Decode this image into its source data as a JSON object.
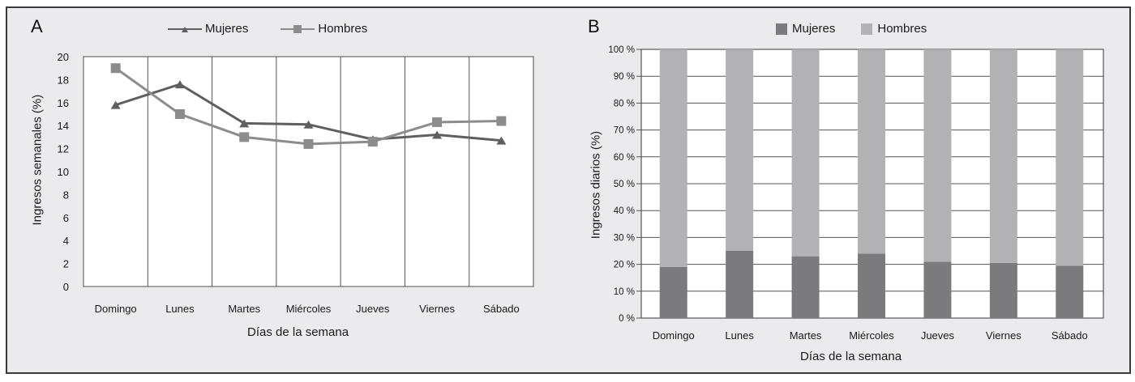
{
  "chart_data": [
    {
      "panel": "A",
      "type": "line",
      "title": "",
      "xlabel": "Días de la semana",
      "ylabel": "Ingresos semanales (%)",
      "ylim": [
        0,
        20
      ],
      "yticks": [
        0,
        2,
        4,
        6,
        8,
        10,
        12,
        14,
        16,
        18,
        20
      ],
      "categories": [
        "Domingo",
        "Lunes",
        "Martes",
        "Miércoles",
        "Jueves",
        "Viernes",
        "Sábado"
      ],
      "series": [
        {
          "name": "Mujeres",
          "marker": "triangle",
          "color": "#5f5f5f",
          "values": [
            15.8,
            17.6,
            14.2,
            14.1,
            12.8,
            13.2,
            12.7
          ]
        },
        {
          "name": "Hombres",
          "marker": "square",
          "color": "#8c8c8c",
          "values": [
            19.0,
            15.0,
            13.0,
            12.4,
            12.6,
            14.3,
            14.4
          ]
        }
      ],
      "grid": "vertical category separators",
      "legend_position": "top"
    },
    {
      "panel": "B",
      "type": "bar",
      "stacked": true,
      "percent": true,
      "title": "",
      "xlabel": "Días de la semana",
      "ylabel": "Ingresos diarios (%)",
      "ylim": [
        0,
        100
      ],
      "yticks": [
        "0 %",
        "10 %",
        "20 %",
        "30 %",
        "40 %",
        "50 %",
        "60 %",
        "70 %",
        "80 %",
        "90 %",
        "100 %"
      ],
      "categories": [
        "Domingo",
        "Lunes",
        "Martes",
        "Miércoles",
        "Jueves",
        "Viernes",
        "Sábado"
      ],
      "series": [
        {
          "name": "Mujeres",
          "color": "#7b7b7d",
          "values": [
            19,
            25,
            23,
            24,
            21,
            20.5,
            19.5
          ]
        },
        {
          "name": "Hombres",
          "color": "#b2b2b4",
          "values": [
            81,
            75,
            77,
            76,
            79,
            79.5,
            80.5
          ]
        }
      ],
      "grid": "horizontal",
      "legend_position": "top"
    }
  ],
  "panels": {
    "a": {
      "letter": "A",
      "legend": [
        "Mujeres",
        "Hombres"
      ],
      "xlabel": "Días de la semana",
      "ylabel": "Ingresos semanales (%)"
    },
    "b": {
      "letter": "B",
      "legend": [
        "Mujeres",
        "Hombres"
      ],
      "xlabel": "Días de la semana",
      "ylabel": "Ingresos diarios (%)"
    }
  }
}
